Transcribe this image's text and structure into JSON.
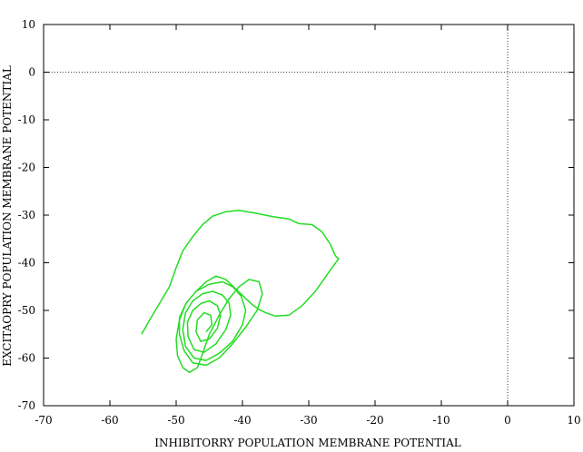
{
  "chart_data": {
    "type": "line",
    "xlabel": "INHIBITORRY POPULATION MEMBRANE POTENTIAL",
    "ylabel": "EXCITAOPRY POPULATION MEMBRANE POTENTIAL",
    "xlim": [
      -70,
      10
    ],
    "ylim": [
      -70,
      10
    ],
    "xticks": [
      -70,
      -60,
      -50,
      -40,
      -30,
      -20,
      -10,
      0,
      10
    ],
    "yticks": [
      -70,
      -60,
      -50,
      -40,
      -30,
      -20,
      -10,
      0,
      10
    ],
    "zero_lines": true,
    "grid": false,
    "colors": {
      "trajectory": "#22dd22",
      "zero_line": "#000000"
    },
    "series": [
      {
        "color": "#22dd22",
        "trajectory": [
          [
            -55.2,
            -55.0
          ],
          [
            -54.0,
            -52.0
          ],
          [
            -52.5,
            -48.5
          ],
          [
            -51.0,
            -45.0
          ],
          [
            -50.0,
            -41.0
          ],
          [
            -49.0,
            -37.5
          ],
          [
            -47.5,
            -34.5
          ],
          [
            -46.0,
            -32.0
          ],
          [
            -44.5,
            -30.2
          ],
          [
            -42.5,
            -29.3
          ],
          [
            -40.5,
            -29.0
          ],
          [
            -38.0,
            -29.6
          ],
          [
            -35.5,
            -30.3
          ],
          [
            -33.0,
            -30.8
          ],
          [
            -31.5,
            -31.8
          ],
          [
            -29.5,
            -32.0
          ],
          [
            -28.0,
            -33.5
          ],
          [
            -26.8,
            -36.0
          ],
          [
            -26.0,
            -38.5
          ],
          [
            -25.5,
            -39.2
          ],
          [
            -26.2,
            -40.5
          ],
          [
            -27.5,
            -43.0
          ],
          [
            -29.0,
            -46.0
          ],
          [
            -31.0,
            -49.0
          ],
          [
            -33.0,
            -51.0
          ],
          [
            -35.0,
            -51.2
          ],
          [
            -36.5,
            -50.5
          ],
          [
            -37.5,
            -49.8
          ],
          [
            -38.5,
            -48.8
          ],
          [
            -39.5,
            -47.5
          ],
          [
            -41.0,
            -45.5
          ],
          [
            -42.5,
            -43.5
          ],
          [
            -44.0,
            -42.8
          ],
          [
            -45.5,
            -44.0
          ],
          [
            -47.0,
            -46.0
          ],
          [
            -48.5,
            -48.5
          ],
          [
            -49.5,
            -52.0
          ],
          [
            -50.0,
            -56.0
          ],
          [
            -49.8,
            -59.5
          ],
          [
            -49.0,
            -62.0
          ],
          [
            -48.0,
            -63.0
          ],
          [
            -46.8,
            -62.0
          ],
          [
            -46.0,
            -59.0
          ],
          [
            -45.0,
            -55.0
          ],
          [
            -43.5,
            -51.0
          ],
          [
            -42.0,
            -47.5
          ],
          [
            -40.5,
            -45.0
          ],
          [
            -39.0,
            -43.5
          ],
          [
            -37.5,
            -44.0
          ],
          [
            -37.0,
            -46.5
          ],
          [
            -37.8,
            -50.0
          ],
          [
            -39.5,
            -53.5
          ],
          [
            -41.5,
            -57.0
          ],
          [
            -43.5,
            -60.0
          ],
          [
            -45.5,
            -61.5
          ],
          [
            -47.5,
            -61.0
          ],
          [
            -48.8,
            -58.5
          ],
          [
            -49.5,
            -55.0
          ],
          [
            -49.5,
            -51.5
          ],
          [
            -48.5,
            -48.5
          ],
          [
            -47.0,
            -46.0
          ],
          [
            -45.0,
            -44.5
          ],
          [
            -43.0,
            -44.0
          ],
          [
            -41.5,
            -45.0
          ],
          [
            -40.2,
            -47.0
          ],
          [
            -39.5,
            -50.0
          ],
          [
            -40.0,
            -53.0
          ],
          [
            -41.5,
            -56.5
          ],
          [
            -43.5,
            -59.0
          ],
          [
            -45.5,
            -60.5
          ],
          [
            -47.3,
            -60.0
          ],
          [
            -48.6,
            -57.5
          ],
          [
            -49.0,
            -54.0
          ],
          [
            -48.6,
            -50.5
          ],
          [
            -47.5,
            -48.0
          ],
          [
            -46.0,
            -46.5
          ],
          [
            -44.5,
            -46.0
          ],
          [
            -43.0,
            -46.8
          ],
          [
            -42.0,
            -48.5
          ],
          [
            -41.8,
            -51.0
          ],
          [
            -42.5,
            -54.0
          ],
          [
            -44.0,
            -57.0
          ],
          [
            -45.8,
            -58.8
          ],
          [
            -47.3,
            -58.2
          ],
          [
            -48.2,
            -55.5
          ],
          [
            -48.3,
            -52.5
          ],
          [
            -47.5,
            -50.0
          ],
          [
            -46.2,
            -48.5
          ],
          [
            -45.0,
            -48.0
          ],
          [
            -43.8,
            -49.0
          ],
          [
            -43.3,
            -51.0
          ],
          [
            -43.8,
            -53.8
          ],
          [
            -45.0,
            -56.0
          ],
          [
            -46.3,
            -56.5
          ],
          [
            -47.0,
            -54.5
          ],
          [
            -46.8,
            -52.0
          ],
          [
            -45.8,
            -50.5
          ],
          [
            -44.8,
            -51.0
          ],
          [
            -44.6,
            -53.0
          ],
          [
            -45.5,
            -54.5
          ]
        ]
      }
    ]
  }
}
